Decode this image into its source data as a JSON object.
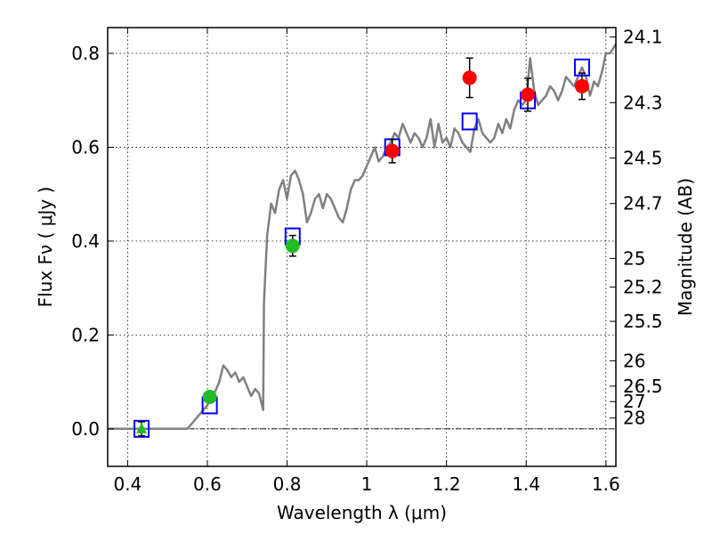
{
  "chart_data": {
    "type": "scatter",
    "xlabel": "Wavelength  λ (μm)",
    "ylabel": "Flux  Fν  ( μJy )",
    "ylabel_right": "Magnitude (AB)",
    "xlim": [
      0.35,
      1.625
    ],
    "ylim": [
      -0.08,
      0.855
    ],
    "grid": true,
    "x_ticks": [
      {
        "value": 0.4,
        "label": "0.4"
      },
      {
        "value": 0.6,
        "label": "0.6"
      },
      {
        "value": 0.8,
        "label": "0.8"
      },
      {
        "value": 1.0,
        "label": "1"
      },
      {
        "value": 1.2,
        "label": "1.2"
      },
      {
        "value": 1.4,
        "label": "1.4"
      },
      {
        "value": 1.6,
        "label": "1.6"
      }
    ],
    "y_ticks": [
      {
        "value": 0.0,
        "label": "0.0"
      },
      {
        "value": 0.2,
        "label": "0.2"
      },
      {
        "value": 0.4,
        "label": "0.4"
      },
      {
        "value": 0.6,
        "label": "0.6"
      },
      {
        "value": 0.8,
        "label": "0.8"
      }
    ],
    "right_ticks": [
      {
        "label": "24.1",
        "flux": 0.835
      },
      {
        "label": "24.3",
        "flux": 0.695
      },
      {
        "label": "24.5",
        "flux": 0.577
      },
      {
        "label": "24.7",
        "flux": 0.48
      },
      {
        "label": "25",
        "flux": 0.363
      },
      {
        "label": "25.2",
        "flux": 0.302
      },
      {
        "label": "25.5",
        "flux": 0.229
      },
      {
        "label": "26",
        "flux": 0.145
      },
      {
        "label": "26.5",
        "flux": 0.091
      },
      {
        "label": "27",
        "flux": 0.058
      },
      {
        "label": "28",
        "flux": 0.023
      }
    ],
    "series": [
      {
        "marker": "line",
        "color": "#808080",
        "x": [
          0.35,
          0.55,
          0.56,
          0.57,
          0.58,
          0.59,
          0.6,
          0.61,
          0.62,
          0.63,
          0.64,
          0.65,
          0.66,
          0.67,
          0.68,
          0.69,
          0.7,
          0.71,
          0.72,
          0.73,
          0.74,
          0.742,
          0.75,
          0.76,
          0.77,
          0.78,
          0.79,
          0.8,
          0.81,
          0.82,
          0.83,
          0.84,
          0.85,
          0.86,
          0.87,
          0.88,
          0.89,
          0.9,
          0.91,
          0.92,
          0.93,
          0.94,
          0.95,
          0.96,
          0.97,
          0.98,
          0.99,
          1.0,
          1.01,
          1.02,
          1.03,
          1.04,
          1.05,
          1.06,
          1.07,
          1.08,
          1.09,
          1.1,
          1.11,
          1.12,
          1.13,
          1.14,
          1.15,
          1.16,
          1.17,
          1.18,
          1.19,
          1.2,
          1.21,
          1.22,
          1.23,
          1.24,
          1.25,
          1.26,
          1.27,
          1.28,
          1.29,
          1.3,
          1.31,
          1.32,
          1.33,
          1.34,
          1.35,
          1.36,
          1.37,
          1.38,
          1.39,
          1.4,
          1.41,
          1.42,
          1.43,
          1.44,
          1.45,
          1.46,
          1.47,
          1.48,
          1.49,
          1.5,
          1.51,
          1.52,
          1.53,
          1.54,
          1.55,
          1.56,
          1.57,
          1.58,
          1.59,
          1.6,
          1.61,
          1.625
        ],
        "y": [
          0.0,
          0.0,
          0.01,
          0.02,
          0.03,
          0.04,
          0.05,
          0.07,
          0.08,
          0.1,
          0.135,
          0.125,
          0.11,
          0.12,
          0.1,
          0.11,
          0.09,
          0.07,
          0.085,
          0.075,
          0.04,
          0.27,
          0.41,
          0.48,
          0.46,
          0.51,
          0.53,
          0.49,
          0.54,
          0.55,
          0.53,
          0.5,
          0.44,
          0.46,
          0.49,
          0.5,
          0.47,
          0.5,
          0.49,
          0.47,
          0.45,
          0.44,
          0.47,
          0.51,
          0.53,
          0.53,
          0.54,
          0.56,
          0.58,
          0.6,
          0.57,
          0.58,
          0.6,
          0.61,
          0.63,
          0.62,
          0.65,
          0.63,
          0.61,
          0.63,
          0.62,
          0.6,
          0.62,
          0.66,
          0.6,
          0.65,
          0.61,
          0.62,
          0.6,
          0.64,
          0.63,
          0.61,
          0.6,
          0.59,
          0.64,
          0.66,
          0.63,
          0.62,
          0.61,
          0.62,
          0.65,
          0.63,
          0.66,
          0.64,
          0.68,
          0.7,
          0.69,
          0.7,
          0.79,
          0.72,
          0.69,
          0.7,
          0.71,
          0.73,
          0.72,
          0.7,
          0.72,
          0.75,
          0.74,
          0.73,
          0.75,
          0.77,
          0.75,
          0.71,
          0.74,
          0.73,
          0.76,
          0.8,
          0.8,
          0.82
        ]
      },
      {
        "marker": "open-square",
        "color": "#0000ff",
        "x": [
          0.435,
          0.606,
          0.814,
          1.064,
          1.258,
          1.404,
          1.54
        ],
        "y": [
          0.0,
          0.05,
          0.41,
          0.6,
          0.655,
          0.7,
          0.77
        ]
      },
      {
        "marker": "circle",
        "color": "#22bb22",
        "x": [
          0.606,
          0.814
        ],
        "y": [
          0.068,
          0.39
        ],
        "err": [
          0.01,
          0.022
        ]
      },
      {
        "marker": "triangle",
        "color": "#22bb22",
        "x": [
          0.435
        ],
        "y": [
          0.0
        ],
        "err": [
          0.015
        ]
      },
      {
        "marker": "circle",
        "color": "#ff0000",
        "x": [
          1.064,
          1.258,
          1.404,
          1.54
        ],
        "y": [
          0.592,
          0.748,
          0.712,
          0.73
        ],
        "err": [
          0.025,
          0.042,
          0.035,
          0.028
        ]
      }
    ]
  }
}
